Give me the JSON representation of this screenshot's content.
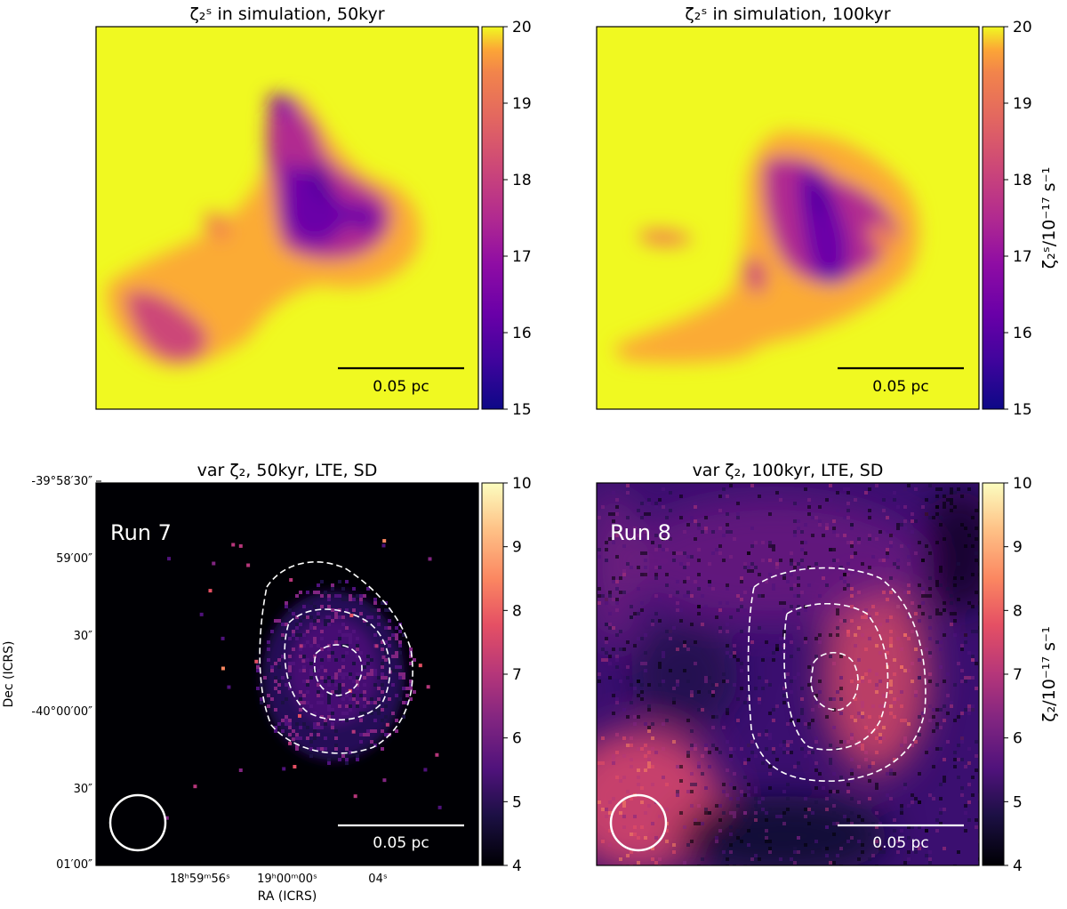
{
  "figure": {
    "panels": [
      {
        "id": "p1",
        "title": "ζ₂ˢ in simulation, 50kyr",
        "scale_bar": "0.05 pc",
        "run_label": "",
        "colorbar_ticks": [
          "15",
          "16",
          "17",
          "18",
          "19",
          "20"
        ],
        "colorbar_range": [
          15,
          20
        ],
        "colorbar_label": "",
        "colormap": "plasma"
      },
      {
        "id": "p2",
        "title": "ζ₂ˢ in simulation, 100kyr",
        "scale_bar": "0.05 pc",
        "run_label": "",
        "colorbar_ticks": [
          "15",
          "16",
          "17",
          "18",
          "19",
          "20"
        ],
        "colorbar_range": [
          15,
          20
        ],
        "colorbar_label": "ζ₂ˢ/10⁻¹⁷ s⁻¹",
        "colormap": "plasma"
      },
      {
        "id": "p3",
        "title": "var ζ₂, 50kyr, LTE, SD",
        "scale_bar": "0.05 pc",
        "run_label": "Run 7",
        "colorbar_ticks": [
          "4",
          "5",
          "6",
          "7",
          "8",
          "9",
          "10"
        ],
        "colorbar_range": [
          4,
          10
        ],
        "colorbar_label": "",
        "colormap": "magma",
        "contours": "white dashed",
        "beam": "circle"
      },
      {
        "id": "p4",
        "title": "var ζ₂, 100kyr, LTE, SD",
        "scale_bar": "0.05 pc",
        "run_label": "Run 8",
        "colorbar_ticks": [
          "4",
          "5",
          "6",
          "7",
          "8",
          "9",
          "10"
        ],
        "colorbar_range": [
          4,
          10
        ],
        "colorbar_label": "ζ₂/10⁻¹⁷ s⁻¹",
        "colormap": "magma",
        "contours": "white dashed",
        "beam": "circle"
      }
    ],
    "axes": {
      "xlabel": "RA (ICRS)",
      "ylabel": "Dec (ICRS)",
      "ra_ticks": [
        "18ʰ59ᵐ56ˢ",
        "19ʰ00ᵐ00ˢ",
        "04ˢ"
      ],
      "dec_ticks": [
        "-39°58′30″",
        "59′00″",
        "30″",
        "-40°00′00″",
        "30″",
        "01′00″"
      ]
    }
  },
  "chart_data": {
    "type": "heatmap",
    "panels": [
      {
        "title": "ζ₂ˢ in simulation, 50kyr",
        "clim": [
          15,
          20
        ],
        "cmap": "plasma",
        "background_value": 20,
        "min_value_approx": 15.5
      },
      {
        "title": "ζ₂ˢ in simulation, 100kyr",
        "clim": [
          15,
          20
        ],
        "cmap": "plasma",
        "background_value": 20,
        "min_value_approx": 16
      },
      {
        "title": "var ζ₂, 50kyr, LTE, SD",
        "clim": [
          4,
          10
        ],
        "cmap": "magma",
        "annotation": "Run 7"
      },
      {
        "title": "var ζ₂, 100kyr, LTE, SD",
        "clim": [
          4,
          10
        ],
        "cmap": "magma",
        "annotation": "Run 8"
      }
    ],
    "xlabel": "RA (ICRS)",
    "ylabel": "Dec (ICRS)"
  }
}
